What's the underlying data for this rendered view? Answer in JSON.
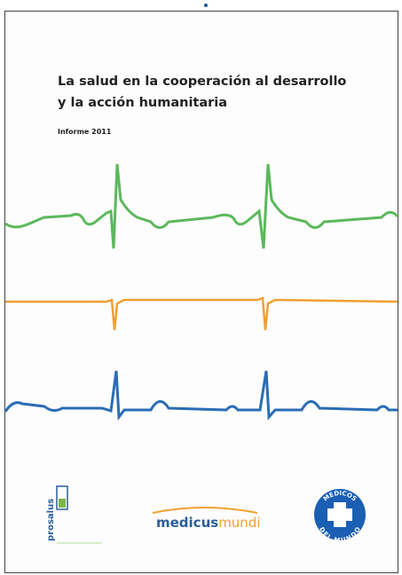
{
  "header": {
    "title_lines": [
      "La salud en la cooperación al desarrollo",
      "y la acción humanitaria"
    ],
    "subtitle": "Informe 2011"
  },
  "logos": {
    "prosalus": "prosalus",
    "medicusmundi": [
      "medicus",
      "mundi"
    ],
    "medicos_del_mundo": [
      "MEDICOS",
      "DEL MUNDO"
    ]
  }
}
